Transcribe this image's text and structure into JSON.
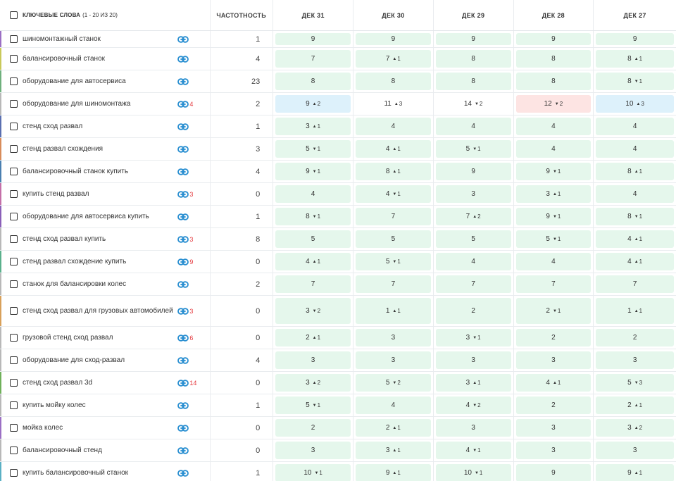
{
  "header": {
    "keywords_title": "КЛЮЧЕВЫЕ СЛОВА",
    "keywords_count": "(1 - 20 ИЗ 20)",
    "frequency": "ЧАСТОТНОСТЬ",
    "dates": [
      "ДЕК 31",
      "ДЕК 30",
      "ДЕК 29",
      "ДЕК 28",
      "ДЕК 27"
    ]
  },
  "colors": {
    "up": "#1d8a52",
    "down": "#e5393e",
    "green_cell": "#e5f7ec",
    "blue_cell": "#ddf1fb",
    "red_cell": "#fde4e3",
    "link_icon": "#2a8fd1"
  },
  "rows": [
    {
      "keyword": "шиномонтажный станок",
      "links": "",
      "freq": "1",
      "accent": "#9b6fc4",
      "positions": [
        {
          "v": "9",
          "d": "",
          "dir": "",
          "bg": "green"
        },
        {
          "v": "9",
          "d": "",
          "dir": "",
          "bg": "green"
        },
        {
          "v": "9",
          "d": "",
          "dir": "",
          "bg": "green"
        },
        {
          "v": "9",
          "d": "",
          "dir": "",
          "bg": "green"
        },
        {
          "v": "9",
          "d": "",
          "dir": "",
          "bg": "green"
        }
      ]
    },
    {
      "keyword": "балансировочный станок",
      "links": "",
      "freq": "4",
      "accent": "#c9c95a",
      "positions": [
        {
          "v": "7",
          "d": "",
          "dir": "",
          "bg": "green"
        },
        {
          "v": "7",
          "d": "1",
          "dir": "up",
          "bg": "green"
        },
        {
          "v": "8",
          "d": "",
          "dir": "",
          "bg": "green"
        },
        {
          "v": "8",
          "d": "",
          "dir": "",
          "bg": "green"
        },
        {
          "v": "8",
          "d": "1",
          "dir": "up",
          "bg": "green"
        }
      ]
    },
    {
      "keyword": "оборудование для автосервиса",
      "links": "",
      "freq": "23",
      "accent": "#6fb07d",
      "positions": [
        {
          "v": "8",
          "d": "",
          "dir": "",
          "bg": "green"
        },
        {
          "v": "8",
          "d": "",
          "dir": "",
          "bg": "green"
        },
        {
          "v": "8",
          "d": "",
          "dir": "",
          "bg": "green"
        },
        {
          "v": "8",
          "d": "",
          "dir": "",
          "bg": "green"
        },
        {
          "v": "8",
          "d": "1",
          "dir": "down",
          "bg": "green"
        }
      ]
    },
    {
      "keyword": "оборудование для шиномонтажа",
      "links": "4",
      "freq": "2",
      "accent": "#b8b8b8",
      "positions": [
        {
          "v": "9",
          "d": "2",
          "dir": "up",
          "bg": "blue"
        },
        {
          "v": "11",
          "d": "3",
          "dir": "up",
          "bg": "white"
        },
        {
          "v": "14",
          "d": "2",
          "dir": "down",
          "bg": "white"
        },
        {
          "v": "12",
          "d": "2",
          "dir": "down",
          "bg": "red"
        },
        {
          "v": "10",
          "d": "3",
          "dir": "up",
          "bg": "blue"
        }
      ]
    },
    {
      "keyword": "стенд сход развал",
      "links": "",
      "freq": "1",
      "accent": "#5a6fb0",
      "positions": [
        {
          "v": "3",
          "d": "1",
          "dir": "up",
          "bg": "green"
        },
        {
          "v": "4",
          "d": "",
          "dir": "",
          "bg": "green"
        },
        {
          "v": "4",
          "d": "",
          "dir": "",
          "bg": "green"
        },
        {
          "v": "4",
          "d": "",
          "dir": "",
          "bg": "green"
        },
        {
          "v": "4",
          "d": "",
          "dir": "",
          "bg": "green"
        }
      ]
    },
    {
      "keyword": "стенд развал схождения",
      "links": "",
      "freq": "3",
      "accent": "#d88c5a",
      "positions": [
        {
          "v": "5",
          "d": "1",
          "dir": "down",
          "bg": "green"
        },
        {
          "v": "4",
          "d": "1",
          "dir": "up",
          "bg": "green"
        },
        {
          "v": "5",
          "d": "1",
          "dir": "down",
          "bg": "green"
        },
        {
          "v": "4",
          "d": "",
          "dir": "",
          "bg": "green"
        },
        {
          "v": "4",
          "d": "",
          "dir": "",
          "bg": "green"
        }
      ]
    },
    {
      "keyword": "балансировочный станок купить",
      "links": "",
      "freq": "4",
      "accent": "#4a7fb0",
      "positions": [
        {
          "v": "9",
          "d": "1",
          "dir": "down",
          "bg": "green"
        },
        {
          "v": "8",
          "d": "1",
          "dir": "up",
          "bg": "green"
        },
        {
          "v": "9",
          "d": "",
          "dir": "",
          "bg": "green"
        },
        {
          "v": "9",
          "d": "1",
          "dir": "down",
          "bg": "green"
        },
        {
          "v": "8",
          "d": "1",
          "dir": "up",
          "bg": "green"
        }
      ]
    },
    {
      "keyword": "купить стенд развал",
      "links": "3",
      "freq": "0",
      "accent": "#c46fa8",
      "positions": [
        {
          "v": "4",
          "d": "",
          "dir": "",
          "bg": "green"
        },
        {
          "v": "4",
          "d": "1",
          "dir": "down",
          "bg": "green"
        },
        {
          "v": "3",
          "d": "",
          "dir": "",
          "bg": "green"
        },
        {
          "v": "3",
          "d": "1",
          "dir": "up",
          "bg": "green"
        },
        {
          "v": "4",
          "d": "",
          "dir": "",
          "bg": "green"
        }
      ]
    },
    {
      "keyword": "оборудование для автосервиса купить",
      "links": "",
      "freq": "1",
      "accent": "#8a5fb8",
      "positions": [
        {
          "v": "8",
          "d": "1",
          "dir": "down",
          "bg": "green"
        },
        {
          "v": "7",
          "d": "",
          "dir": "",
          "bg": "green"
        },
        {
          "v": "7",
          "d": "2",
          "dir": "up",
          "bg": "green"
        },
        {
          "v": "9",
          "d": "1",
          "dir": "down",
          "bg": "green"
        },
        {
          "v": "8",
          "d": "1",
          "dir": "down",
          "bg": "green"
        }
      ]
    },
    {
      "keyword": "стенд сход развал купить",
      "links": "3",
      "freq": "8",
      "accent": "#b8b8b8",
      "positions": [
        {
          "v": "5",
          "d": "",
          "dir": "",
          "bg": "green"
        },
        {
          "v": "5",
          "d": "",
          "dir": "",
          "bg": "green"
        },
        {
          "v": "5",
          "d": "",
          "dir": "",
          "bg": "green"
        },
        {
          "v": "5",
          "d": "1",
          "dir": "down",
          "bg": "green"
        },
        {
          "v": "4",
          "d": "1",
          "dir": "up",
          "bg": "green"
        }
      ]
    },
    {
      "keyword": "стенд развал схождение купить",
      "links": "9",
      "freq": "0",
      "accent": "#5ab08c",
      "positions": [
        {
          "v": "4",
          "d": "1",
          "dir": "up",
          "bg": "green"
        },
        {
          "v": "5",
          "d": "1",
          "dir": "down",
          "bg": "green"
        },
        {
          "v": "4",
          "d": "",
          "dir": "",
          "bg": "green"
        },
        {
          "v": "4",
          "d": "",
          "dir": "",
          "bg": "green"
        },
        {
          "v": "4",
          "d": "1",
          "dir": "up",
          "bg": "green"
        }
      ]
    },
    {
      "keyword": "станок для балансировки колес",
      "links": "",
      "freq": "2",
      "accent": "#b8b8b8",
      "positions": [
        {
          "v": "7",
          "d": "",
          "dir": "",
          "bg": "green"
        },
        {
          "v": "7",
          "d": "",
          "dir": "",
          "bg": "green"
        },
        {
          "v": "7",
          "d": "",
          "dir": "",
          "bg": "green"
        },
        {
          "v": "7",
          "d": "",
          "dir": "",
          "bg": "green"
        },
        {
          "v": "7",
          "d": "",
          "dir": "",
          "bg": "green"
        }
      ]
    },
    {
      "keyword": "стенд сход развал для грузовых автомобилей",
      "links": "3",
      "freq": "0",
      "accent": "#d8a05a",
      "tall": true,
      "positions": [
        {
          "v": "3",
          "d": "2",
          "dir": "down",
          "bg": "green"
        },
        {
          "v": "1",
          "d": "1",
          "dir": "up",
          "bg": "green"
        },
        {
          "v": "2",
          "d": "",
          "dir": "",
          "bg": "green"
        },
        {
          "v": "2",
          "d": "1",
          "dir": "down",
          "bg": "green"
        },
        {
          "v": "1",
          "d": "1",
          "dir": "up",
          "bg": "green"
        }
      ]
    },
    {
      "keyword": "грузовой стенд сход развал",
      "links": "6",
      "freq": "0",
      "accent": "#b8b8b8",
      "positions": [
        {
          "v": "2",
          "d": "1",
          "dir": "up",
          "bg": "green"
        },
        {
          "v": "3",
          "d": "",
          "dir": "",
          "bg": "green"
        },
        {
          "v": "3",
          "d": "1",
          "dir": "down",
          "bg": "green"
        },
        {
          "v": "2",
          "d": "",
          "dir": "",
          "bg": "green"
        },
        {
          "v": "2",
          "d": "",
          "dir": "",
          "bg": "green"
        }
      ]
    },
    {
      "keyword": "оборудование для сход-развал",
      "links": "",
      "freq": "4",
      "accent": "#b8b8b8",
      "positions": [
        {
          "v": "3",
          "d": "",
          "dir": "",
          "bg": "green"
        },
        {
          "v": "3",
          "d": "",
          "dir": "",
          "bg": "green"
        },
        {
          "v": "3",
          "d": "",
          "dir": "",
          "bg": "green"
        },
        {
          "v": "3",
          "d": "",
          "dir": "",
          "bg": "green"
        },
        {
          "v": "3",
          "d": "",
          "dir": "",
          "bg": "green"
        }
      ]
    },
    {
      "keyword": "стенд сход развал 3d",
      "links": "14",
      "freq": "0",
      "accent": "#6fb05a",
      "positions": [
        {
          "v": "3",
          "d": "2",
          "dir": "up",
          "bg": "green"
        },
        {
          "v": "5",
          "d": "2",
          "dir": "down",
          "bg": "green"
        },
        {
          "v": "3",
          "d": "1",
          "dir": "up",
          "bg": "green"
        },
        {
          "v": "4",
          "d": "1",
          "dir": "up",
          "bg": "green"
        },
        {
          "v": "5",
          "d": "3",
          "dir": "down",
          "bg": "green"
        }
      ]
    },
    {
      "keyword": "купить мойку колес",
      "links": "",
      "freq": "1",
      "accent": "#b8b8b8",
      "positions": [
        {
          "v": "5",
          "d": "1",
          "dir": "down",
          "bg": "green"
        },
        {
          "v": "4",
          "d": "",
          "dir": "",
          "bg": "green"
        },
        {
          "v": "4",
          "d": "2",
          "dir": "down",
          "bg": "green"
        },
        {
          "v": "2",
          "d": "",
          "dir": "",
          "bg": "green"
        },
        {
          "v": "2",
          "d": "1",
          "dir": "up",
          "bg": "green"
        }
      ]
    },
    {
      "keyword": "мойка колес",
      "links": "",
      "freq": "0",
      "accent": "#9b6fc4",
      "positions": [
        {
          "v": "2",
          "d": "",
          "dir": "",
          "bg": "green"
        },
        {
          "v": "2",
          "d": "1",
          "dir": "up",
          "bg": "green"
        },
        {
          "v": "3",
          "d": "",
          "dir": "",
          "bg": "green"
        },
        {
          "v": "3",
          "d": "",
          "dir": "",
          "bg": "green"
        },
        {
          "v": "3",
          "d": "2",
          "dir": "up",
          "bg": "green"
        }
      ]
    },
    {
      "keyword": "балансировочный стенд",
      "links": "",
      "freq": "0",
      "accent": "#b8b8b8",
      "positions": [
        {
          "v": "3",
          "d": "",
          "dir": "",
          "bg": "green"
        },
        {
          "v": "3",
          "d": "1",
          "dir": "up",
          "bg": "green"
        },
        {
          "v": "4",
          "d": "1",
          "dir": "down",
          "bg": "green"
        },
        {
          "v": "3",
          "d": "",
          "dir": "",
          "bg": "green"
        },
        {
          "v": "3",
          "d": "",
          "dir": "",
          "bg": "green"
        }
      ]
    },
    {
      "keyword": "купить балансировочный станок",
      "links": "",
      "freq": "1",
      "accent": "#5ab0c4",
      "positions": [
        {
          "v": "10",
          "d": "1",
          "dir": "down",
          "bg": "green"
        },
        {
          "v": "9",
          "d": "1",
          "dir": "up",
          "bg": "green"
        },
        {
          "v": "10",
          "d": "1",
          "dir": "down",
          "bg": "green"
        },
        {
          "v": "9",
          "d": "",
          "dir": "",
          "bg": "green"
        },
        {
          "v": "9",
          "d": "1",
          "dir": "up",
          "bg": "green"
        }
      ]
    }
  ]
}
